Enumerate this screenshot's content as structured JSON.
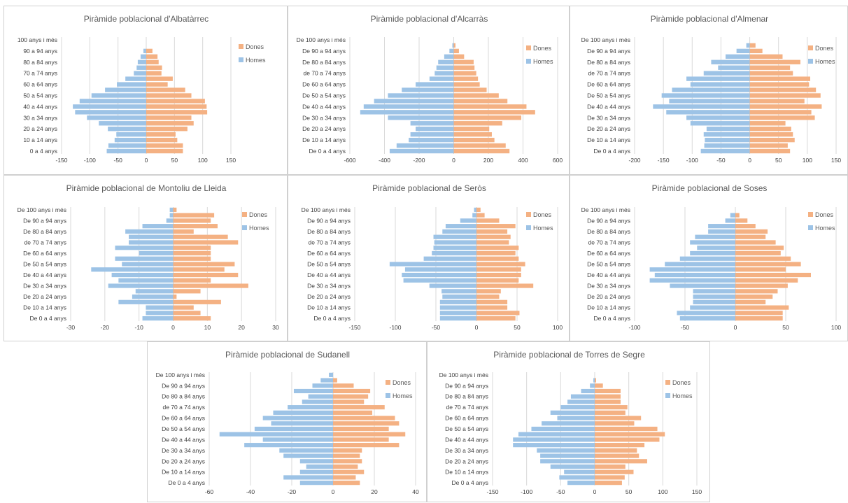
{
  "colors": {
    "women": "#F4B183",
    "men": "#9DC3E6",
    "grid": "#d9d9d9",
    "text": "#404040"
  },
  "chart_data": [
    {
      "type": "bar",
      "title": "Piràmide poblacional d'Albatàrrec",
      "categories": [
        "0 a 4 anys",
        "5 a 9 anys",
        "10 a 14 anys",
        "15 a 19 anys",
        "20 a 24 anys",
        "25 a 29 anys",
        "30 a 34 anys",
        "35 a 39 anys",
        "40 a 44 anys",
        "45 a 49 anys",
        "50 a 54 anys",
        "55 a 59 anys",
        "60 a 64 anys",
        "65 a 69 anys",
        "70 a 74 anys",
        "75 a 79 anys",
        "80 a 84 anys",
        "85 a 89 anys",
        "90 a 94 anys",
        "95 a 99 anys",
        "100 anys i més"
      ],
      "tick_labels": [
        "0 a 4 anys",
        "10 a 14 anys",
        "20 a 24 anys",
        "30 a 34 anys",
        "40 a 44 anys",
        "50 a 54 anys",
        "60 a 64 anys",
        "70 a 74 anys",
        "80 a 84 anys",
        "90 a 94 anys",
        "100 anys i més"
      ],
      "series": [
        {
          "name": "Dones",
          "values": [
            65,
            65,
            55,
            52,
            73,
            84,
            80,
            108,
            107,
            104,
            80,
            69,
            38,
            47,
            27,
            28,
            22,
            20,
            11,
            0,
            0
          ]
        },
        {
          "name": "Homes",
          "values": [
            -70,
            -67,
            -56,
            -53,
            -68,
            -84,
            -105,
            -126,
            -130,
            -118,
            -97,
            -73,
            -52,
            -37,
            -22,
            -17,
            -15,
            -10,
            -5,
            0,
            0
          ]
        }
      ],
      "xlim": [
        -150,
        150
      ],
      "xticks": [
        -150,
        -100,
        -50,
        0,
        50,
        100,
        150
      ],
      "grid": true,
      "legend": "right"
    },
    {
      "type": "bar",
      "title": "Piràmide poblacional d'Alcarràs",
      "categories": [
        "De 0 a 4 anys",
        "De 5 a 9 anys",
        "De 10 a 14 anys",
        "De 15 a 19 anys",
        "De 20 a 24 anys",
        "De 25 a 29 anys",
        "De 30 a 34 anys",
        "De 35 a 39 anys",
        "De 40 a 44 anys",
        "De 45 a 49 anys",
        "De 50 a 54 anys",
        "De 55 a 59 anys",
        "De 60 a 64 anys",
        "De 65 a 69 anys",
        "de 70 a 74 anys",
        "De 75 a 79 anys",
        "De 80 a 84 anys",
        "De 85 a 89 anys",
        "De 90 a 94 anys",
        "De 95 a 99 anys",
        "De 100 anys i més"
      ],
      "tick_labels": [
        "De 0 a 4 anys",
        "De 10 a 14 anys",
        "De 20 a 24 anys",
        "De 30 a 34 anys",
        "De 40 a 44 anys",
        "De 50 a 54 anys",
        "De 60 a 64 anys",
        "de 70 a 74 anys",
        "De 80 a 84 anys",
        "De 90 a 94 anys",
        "De 100 anys i més"
      ],
      "series": [
        {
          "name": "Dones",
          "values": [
            322,
            300,
            235,
            220,
            205,
            280,
            390,
            470,
            420,
            310,
            260,
            190,
            150,
            140,
            130,
            120,
            115,
            60,
            30,
            10,
            0
          ]
        },
        {
          "name": "Homes",
          "values": [
            -370,
            -330,
            -260,
            -250,
            -220,
            -250,
            -380,
            -540,
            -520,
            -460,
            -380,
            -300,
            -220,
            -140,
            -110,
            -100,
            -90,
            -55,
            -25,
            -8,
            0
          ]
        }
      ],
      "xlim": [
        -600,
        600
      ],
      "xticks": [
        -600,
        -400,
        -200,
        0,
        200,
        400,
        600
      ],
      "grid": true,
      "legend": "right"
    },
    {
      "type": "bar",
      "title": "Piràmide poblacional d'Almenar",
      "categories": [
        "De 0 a 4 anys",
        "De 5 a 9 anys",
        "De 10 a 14 anys",
        "De 15 a 19 anys",
        "De 20 a 24 anys",
        "De 25 a 29 anys",
        "De 30 a 34 anys",
        "De 35 a 39 anys",
        "De 40 a 44 anys",
        "De 45 a 49 anys",
        "De 50 a 54 anys",
        "De 55 a 59 anys",
        "De 60 a 64 anys",
        "De 65 a 69 anys",
        "de 70 a 74 anys",
        "De 75 a 79 anys",
        "De 80 a 84 anys",
        "De 85 a 89 anys",
        "De 90 a 94 anys",
        "De 95 a 99 anys",
        "De 100 anys i més"
      ],
      "tick_labels": [
        "De 0 a 4 anys",
        "De 10 a 14 anys",
        "De 20 a 24 anys",
        "De 30 a 34 anys",
        "De 40 a 44 anys",
        "De 50 a 54 anys",
        "De 60 a 64 anys",
        "de 70 a 74 anys",
        "De 80 a 84 anys",
        "De 90 a 94 anys",
        "De 100 anys i més"
      ],
      "series": [
        {
          "name": "Dones",
          "values": [
            70,
            66,
            78,
            75,
            72,
            62,
            113,
            107,
            125,
            95,
            123,
            115,
            103,
            105,
            75,
            70,
            88,
            57,
            22,
            10,
            0
          ]
        },
        {
          "name": "Homes",
          "values": [
            -85,
            -79,
            -78,
            -80,
            -75,
            -103,
            -110,
            -145,
            -168,
            -140,
            -153,
            -135,
            -103,
            -110,
            -80,
            -55,
            -67,
            -42,
            -23,
            -6,
            0
          ]
        }
      ],
      "xlim": [
        -200,
        150
      ],
      "xticks": [
        -200,
        -150,
        -100,
        -50,
        0,
        50,
        100,
        150
      ],
      "grid": true,
      "legend": "right"
    },
    {
      "type": "bar",
      "title": "Piràmide poblacional de Montoliu de Lleida",
      "categories": [
        "De 0 a 4 anys",
        "De 5 a 9 anys",
        "De 10 a 14 anys",
        "De 15 a 19 anys",
        "De 20 a 24 anys",
        "De 25 a 29 anys",
        "De 30 a 34 anys",
        "De 35 a 39 anys",
        "De 40 a 44 anys",
        "De 45 a 49 anys",
        "De 50 a 54 anys",
        "De 55 a 59 anys",
        "De 60 a 64 anys",
        "De 65 a 69 anys",
        "de 70 a 74 anys",
        "De 75 a 79 anys",
        "De 80 a 84 anys",
        "De 85 a 89 anys",
        "De 90 a 94 anys",
        "De 95 a 99 anys",
        "De 100 anys i més"
      ],
      "tick_labels": [
        "De 0 a 4 anys",
        "De 10 a 14 anys",
        "De 20 a 24 anys",
        "De 30 a 34 anys",
        "De 40 a 44 anys",
        "De 50 a 54 anys",
        "De 60 a 64 anys",
        "de 70 a 74 anys",
        "De 80 a 84 anys",
        "De 90 a 94 anys",
        "De 100 anys i més"
      ],
      "series": [
        {
          "name": "Dones",
          "values": [
            11,
            8,
            6,
            14,
            1,
            8,
            22,
            11,
            19,
            15,
            18,
            11,
            11,
            11,
            19,
            16,
            6,
            13,
            11,
            12,
            1
          ]
        },
        {
          "name": "Homes",
          "values": [
            -9,
            -8,
            -8,
            -16,
            -12,
            -11,
            -19,
            -16,
            -18,
            -24,
            -15,
            -17,
            -10,
            -17,
            -13,
            -13,
            -14,
            -9,
            -2,
            -1,
            -1
          ]
        }
      ],
      "xlim": [
        -30,
        30
      ],
      "xticks": [
        -30,
        -20,
        -10,
        0,
        10,
        20,
        30
      ],
      "grid": true,
      "legend": "right"
    },
    {
      "type": "bar",
      "title": "Piràmide poblacional de Seròs",
      "categories": [
        "De 0 a 4 anys",
        "De 5 a 9 anys",
        "De 10 a 14 anys",
        "De 15 a 19 anys",
        "De 20 a 24 anys",
        "De 25 a 29 anys",
        "De 30 a 34 anys",
        "De 35 a 39 anys",
        "De 40 a 44 anys",
        "De 45 a 49 anys",
        "De 50 a 54 anys",
        "De 55 a 59 anys",
        "De 60 a 64 anys",
        "De 65 a 69 anys",
        "de 70 a 74 anys",
        "De 75 a 79 anys",
        "De 80 a 84 anys",
        "De 85 a 89 anys",
        "De 90 a 94 anys",
        "De 95 a 99 anys",
        "De 100 anys i més"
      ],
      "tick_labels": [
        "De 0 a 4 anys",
        "De 10 a 14 anys",
        "De 20 a 24 anys",
        "De 30 a 34 anys",
        "De 40 a 44 anys",
        "De 50 a 54 anys",
        "De 60 a 64 anys",
        "de 70 a 74 anys",
        "De 80 a 84 anys",
        "De 90 a 94 anys",
        "De 100 anys i més"
      ],
      "series": [
        {
          "name": "Dones",
          "values": [
            48,
            53,
            38,
            38,
            28,
            30,
            70,
            52,
            55,
            55,
            60,
            52,
            48,
            52,
            40,
            42,
            38,
            48,
            28,
            10,
            5
          ]
        },
        {
          "name": "Homes",
          "values": [
            -45,
            -45,
            -45,
            -45,
            -42,
            -43,
            -58,
            -90,
            -92,
            -88,
            -107,
            -65,
            -55,
            -53,
            -52,
            -53,
            -42,
            -38,
            -20,
            -5,
            -3
          ]
        }
      ],
      "xlim": [
        -150,
        100
      ],
      "xticks": [
        -150,
        -100,
        -50,
        0,
        50,
        100
      ],
      "grid": true,
      "legend": "right"
    },
    {
      "type": "bar",
      "title": "Piràmide poblacional de Soses",
      "categories": [
        "De 0 a 4 anys",
        "De 5 a 9 anys",
        "De 10 a 14 anys",
        "De 15 a 19 anys",
        "De 20 a 24 anys",
        "De 25 a 29 anys",
        "De 30 a 34 anys",
        "De 35 a 39 anys",
        "De 40 a 44 anys",
        "De 45 a 49 anys",
        "De 50 a 54 anys",
        "De 55 a 59 anys",
        "De 60 a 64 anys",
        "De 65 a 69 anys",
        "de 70 a 74 anys",
        "De 75 a 79 anys",
        "De 80 a 84 anys",
        "De 85 a 89 anys",
        "De 90 a 94 anys",
        "De 95 a 99 anys",
        "De 100 anys i més"
      ],
      "tick_labels": [
        "De 0 a 4 anys",
        "De 10 a 14 anys",
        "De 20 a 24 anys",
        "De 30 a 34 anys",
        "De 40 a 44 anys",
        "De 50 a 54 anys",
        "De 60 a 64 anys",
        "de 70 a 74 anys",
        "De 80 a 84 anys",
        "De 90 a 94 anys",
        "De 100 anys i més"
      ],
      "series": [
        {
          "name": "Dones",
          "values": [
            47,
            47,
            53,
            30,
            37,
            42,
            52,
            62,
            75,
            50,
            65,
            55,
            45,
            48,
            40,
            30,
            32,
            20,
            12,
            4,
            0
          ]
        },
        {
          "name": "Homes",
          "values": [
            -55,
            -58,
            -45,
            -42,
            -42,
            -42,
            -65,
            -85,
            -80,
            -85,
            -70,
            -55,
            -45,
            -38,
            -45,
            -40,
            -27,
            -27,
            -10,
            -5,
            0
          ]
        }
      ],
      "xlim": [
        -100,
        100
      ],
      "xticks": [
        -100,
        -50,
        0,
        50,
        100
      ],
      "grid": true,
      "legend": "right"
    },
    {
      "type": "bar",
      "title": "Piràmide poblacional de Sudanell",
      "categories": [
        "De 0 a 4 anys",
        "De 5 a 9 anys",
        "De 10 a 14 anys",
        "De 15 a 19 anys",
        "De 20 a 24 anys",
        "De 25 a 29 anys",
        "De 30 a 34 anys",
        "De 35 a 39 anys",
        "De 40 a 44 anys",
        "De 45 a 49 anys",
        "De 50 a 54 anys",
        "De 55 a 59 anys",
        "De 60 a 64 anys",
        "De 65 a 69 anys",
        "de 70 a 74 anys",
        "De 75 a 79 anys",
        "De 80 a 84 anys",
        "De 85 a 89 anys",
        "De 90 a 94 anys",
        "De 95 a 99 anys",
        "De 100 anys i més"
      ],
      "tick_labels": [
        "De 0 a 4 anys",
        "De 10 a 14 anys",
        "De 20 a 24 anys",
        "De 30 a 34 anys",
        "De 40 a 44 anys",
        "De 50 a 54 anys",
        "De 60 a 64 anys",
        "de 70 a 74 anys",
        "De 80 a 84 anys",
        "De 90 a 94 anys",
        "De 100 anys i més"
      ],
      "series": [
        {
          "name": "Dones",
          "values": [
            13,
            11,
            15,
            12,
            14,
            13,
            14,
            32,
            27,
            35,
            27,
            32,
            30,
            19,
            25,
            15,
            17,
            18,
            10,
            2,
            0
          ]
        },
        {
          "name": "Homes",
          "values": [
            -16,
            -24,
            -16,
            -13,
            -16,
            -24,
            -26,
            -43,
            -34,
            -55,
            -38,
            -30,
            -34,
            -29,
            -22,
            -15,
            -12,
            -19,
            -10,
            -6,
            -2
          ]
        }
      ],
      "xlim": [
        -60,
        40
      ],
      "xticks": [
        -60,
        -40,
        -20,
        0,
        20,
        40
      ],
      "grid": true,
      "legend": "right"
    },
    {
      "type": "bar",
      "title": "Piràmide poblacional de Torres de Segre",
      "categories": [
        "De 0 a 4 anys",
        "De 5 a 9 anys",
        "De 10 a 14 anys",
        "De 15 a 19 anys",
        "De 20 a 24 anys",
        "De 25 a 29 anys",
        "De 30 a 34 anys",
        "De 35 a 39 anys",
        "De 40 a 44 anys",
        "De 45 a 49 anys",
        "De 50 a 54 anys",
        "De 55 a 59 anys",
        "De 60 a 64 anys",
        "De 65 a 69 anys",
        "de 70 a 74 anys",
        "De 75 a 79 anys",
        "De 80 a 84 anys",
        "De 85 a 89 anys",
        "De 90 a 94 anys",
        "De 95 a 99 anys",
        "De 100 anys i més"
      ],
      "tick_labels": [
        "De 0 a 4 anys",
        "De 10 a 14 anys",
        "De 20 a 24 anys",
        "De 30 a 34 anys",
        "De 40 a 44 anys",
        "De 50 a 54 anys",
        "De 60 a 64 anys",
        "de 70 a 74 anys",
        "De 80 a 84 anys",
        "De 90 a 94 anys",
        "De 100 anys i més"
      ],
      "series": [
        {
          "name": "Dones",
          "values": [
            40,
            44,
            57,
            45,
            77,
            65,
            62,
            73,
            95,
            103,
            92,
            58,
            68,
            45,
            48,
            38,
            38,
            38,
            12,
            2,
            0
          ]
        },
        {
          "name": "Homes",
          "values": [
            -40,
            -52,
            -45,
            -65,
            -80,
            -80,
            -85,
            -120,
            -120,
            -112,
            -93,
            -78,
            -55,
            -65,
            -50,
            -40,
            -35,
            -20,
            -7,
            -2,
            0
          ]
        }
      ],
      "xlim": [
        -150,
        150
      ],
      "xticks": [
        -150,
        -100,
        -50,
        0,
        50,
        100,
        150
      ],
      "grid": true,
      "legend": "right"
    }
  ]
}
